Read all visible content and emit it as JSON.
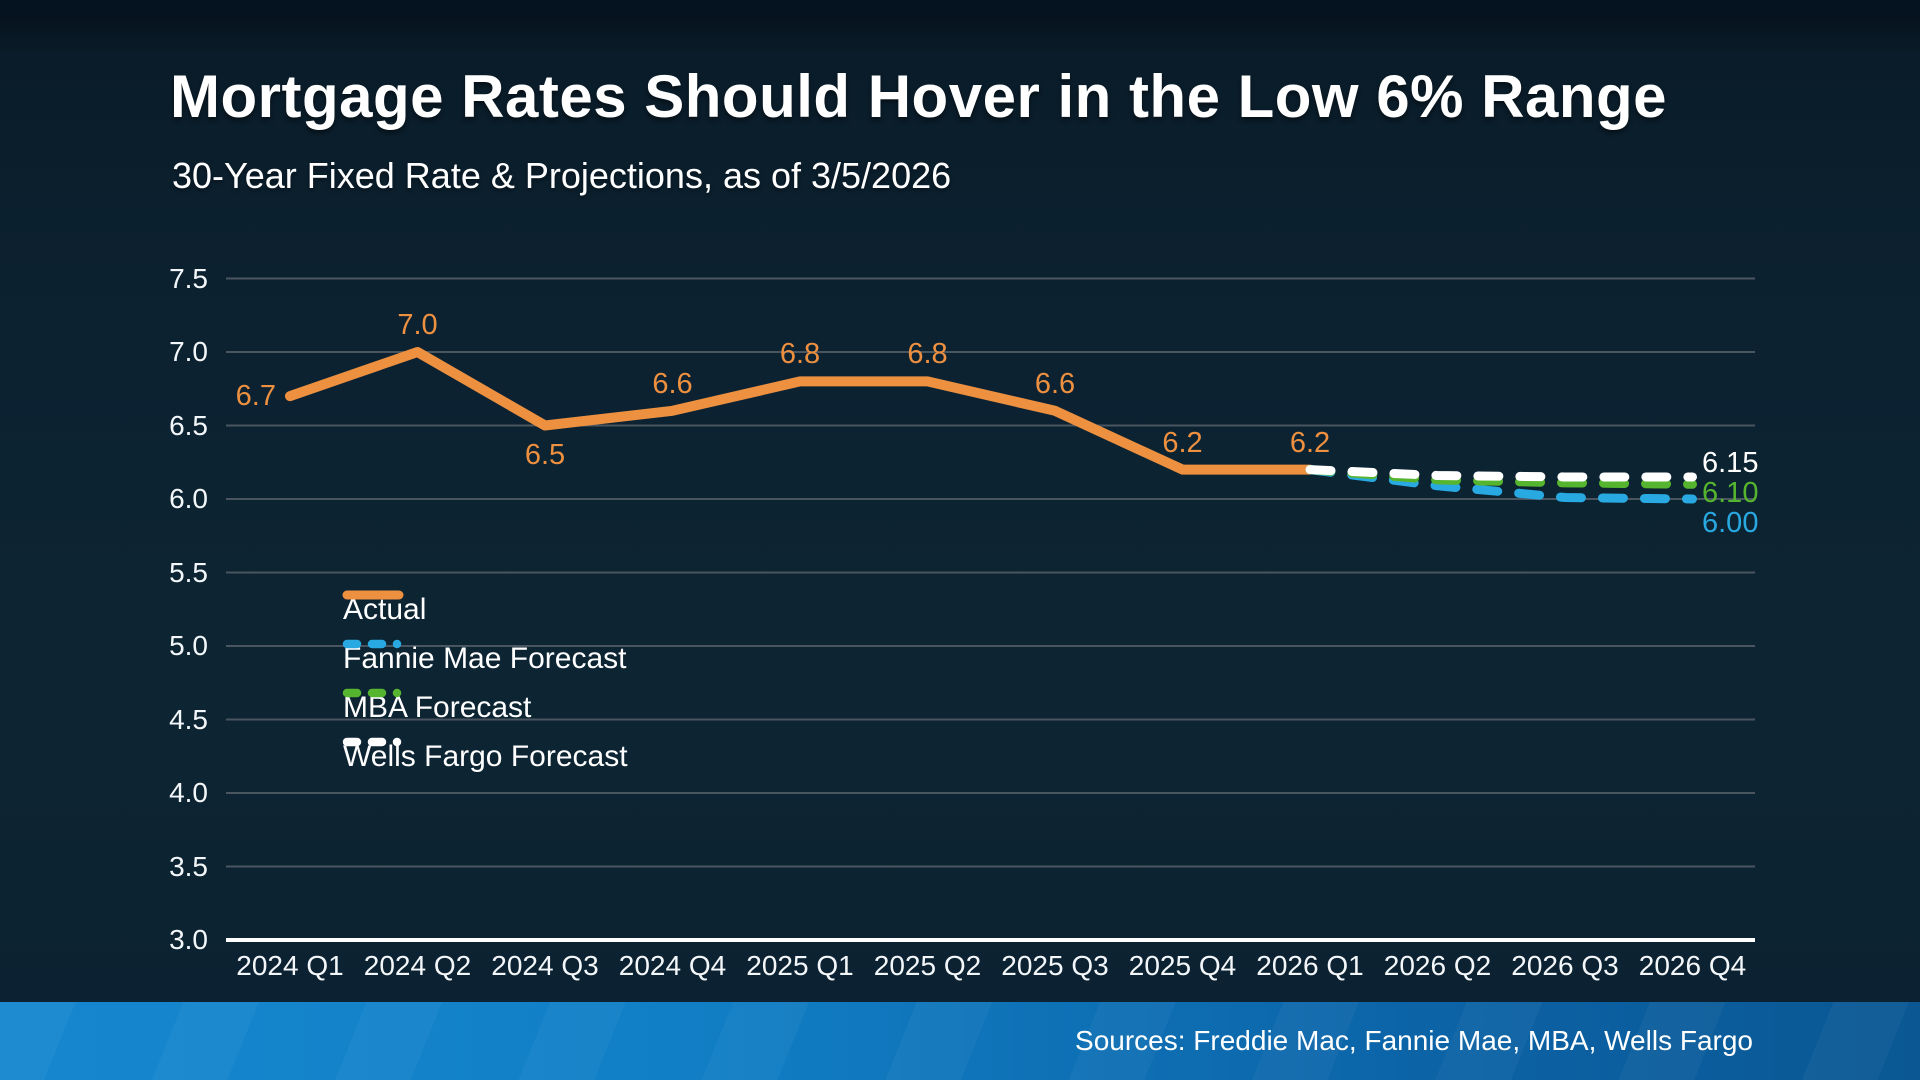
{
  "slide": {
    "title": "Mortgage Rates Should Hover in the Low 6% Range",
    "subtitle": "30-Year Fixed Rate & Projections, as of 3/5/2026",
    "sources": "Sources: Freddie Mac, Fannie Mae, MBA, Wells Fargo"
  },
  "colors": {
    "background": "#0d2433",
    "top_strip": "#051220",
    "gridline": "#4a5560",
    "axis_line": "#ffffff",
    "text": "#ffffff",
    "accent_orange": "#ed9040",
    "accent_blue": "#29a9e1",
    "accent_green": "#56b52f",
    "footer_left": "#1687cf",
    "footer_right": "#0a5793"
  },
  "chart_data": {
    "type": "line",
    "title": "Mortgage Rates Should Hover in the Low 6% Range",
    "subtitle": "30-Year Fixed Rate & Projections, as of 3/5/2026",
    "categories": [
      "2024 Q1",
      "2024 Q2",
      "2024 Q3",
      "2024 Q4",
      "2025 Q1",
      "2025 Q2",
      "2025 Q3",
      "2025 Q4",
      "2026 Q1",
      "2026 Q2",
      "2026 Q3",
      "2026 Q4"
    ],
    "ylim": [
      3.0,
      7.5
    ],
    "ytick_step": 0.5,
    "grid": true,
    "legend_position": "inside-left",
    "series": [
      {
        "name": "Actual",
        "color": "#ed9040",
        "style": "solid",
        "x_start_index": 0,
        "values": [
          6.7,
          7.0,
          6.5,
          6.6,
          6.8,
          6.8,
          6.6,
          6.2,
          6.2
        ],
        "point_labels": [
          "6.7",
          "7.0",
          "6.5",
          "6.6",
          "6.8",
          "6.8",
          "6.6",
          "6.2",
          "6.2"
        ],
        "label_pos": [
          "left",
          "above",
          "below",
          "above",
          "above",
          "above",
          "above",
          "above",
          "above"
        ]
      },
      {
        "name": "Fannie Mae Forecast",
        "color": "#29a9e1",
        "style": "dashed",
        "x_start_index": 8,
        "values": [
          6.2,
          6.09,
          6.01,
          6.0
        ],
        "end_label": "6.00"
      },
      {
        "name": "MBA Forecast",
        "color": "#56b52f",
        "style": "dashed",
        "x_start_index": 8,
        "values": [
          6.2,
          6.13,
          6.11,
          6.1
        ],
        "end_label": "6.10"
      },
      {
        "name": "Wells Fargo Forecast",
        "color": "#ffffff",
        "style": "dashed",
        "x_start_index": 8,
        "values": [
          6.2,
          6.16,
          6.15,
          6.15
        ],
        "end_label": "6.15"
      }
    ]
  }
}
